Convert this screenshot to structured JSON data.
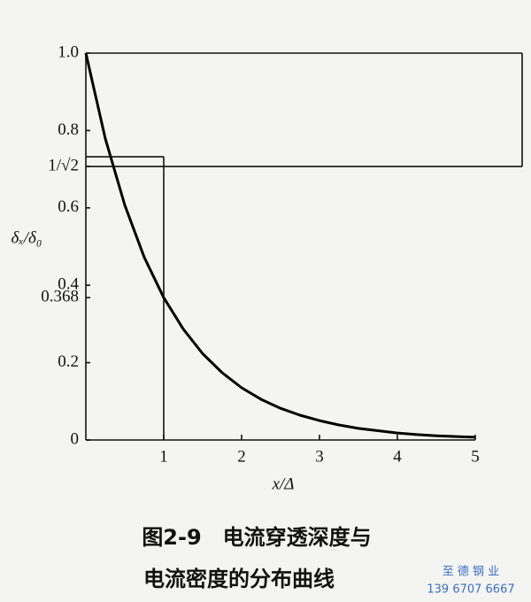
{
  "chart_data": {
    "type": "line",
    "x": [
      0,
      0.25,
      0.5,
      0.75,
      1,
      1.25,
      1.5,
      1.75,
      2,
      2.25,
      2.5,
      2.75,
      3,
      3.25,
      3.5,
      3.75,
      4,
      4.25,
      4.5,
      4.75,
      5
    ],
    "series": [
      {
        "name": null,
        "color": "#000000",
        "values": [
          1,
          0.779,
          0.607,
          0.472,
          0.368,
          0.287,
          0.223,
          0.174,
          0.135,
          0.105,
          0.082,
          0.064,
          0.05,
          0.039,
          0.03,
          0.024,
          0.018,
          0.014,
          0.011,
          0.009,
          0.007
        ]
      }
    ],
    "xlim": [
      0,
      5
    ],
    "xticks": [
      1,
      2,
      3,
      4,
      5
    ],
    "ylim": [
      0,
      1
    ],
    "yticks": [
      0,
      0.2,
      {
        "value": 0.368,
        "label": "0.368"
      },
      0.4,
      0.6,
      {
        "value": 0.707,
        "label": "1/√2"
      },
      0.8,
      {
        "value": 1,
        "label": "1.0"
      }
    ],
    "xlabel": "x/Δ",
    "ylabel": "δₓ/δ₀",
    "caption": [
      "图2-9　电流穿透深度与",
      "电流密度的分布曲线"
    ],
    "watermark": [
      "至 德 钢 业",
      "139 6707 6667"
    ]
  }
}
